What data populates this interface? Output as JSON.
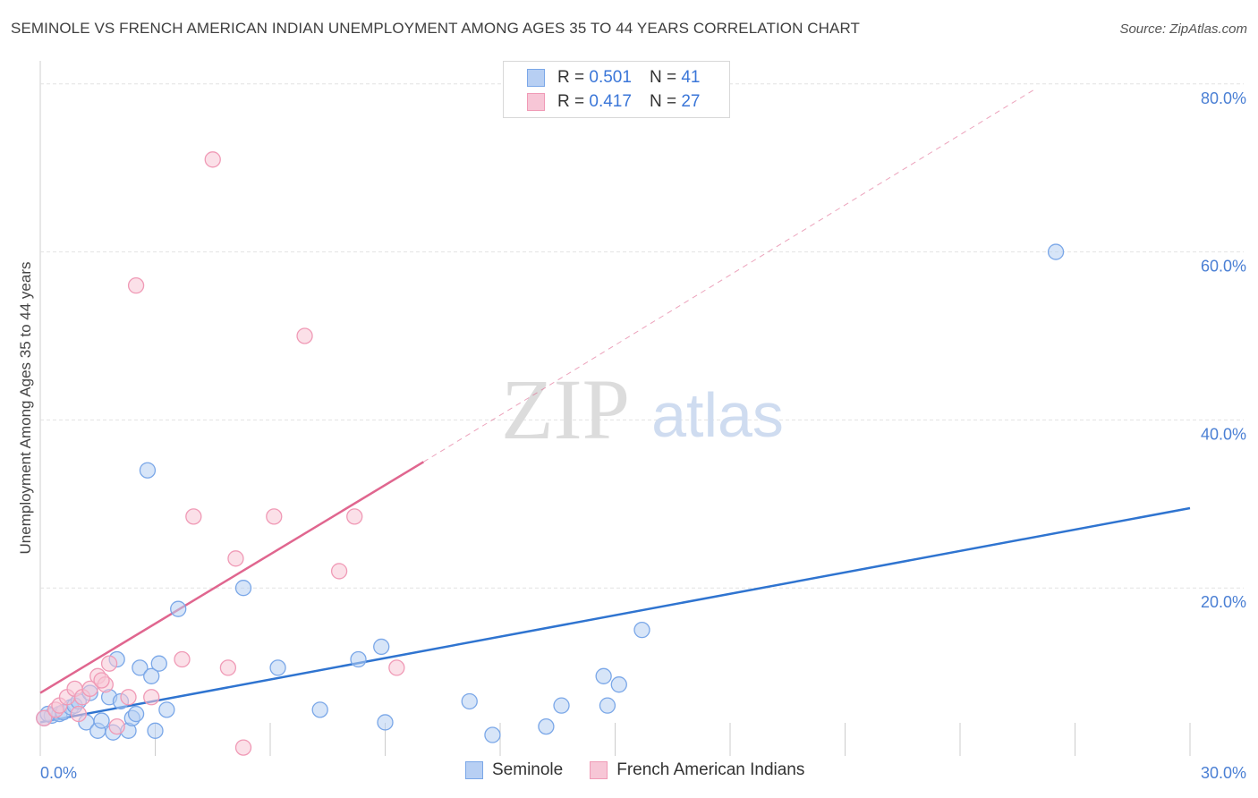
{
  "title": "SEMINOLE VS FRENCH AMERICAN INDIAN UNEMPLOYMENT AMONG AGES 35 TO 44 YEARS CORRELATION CHART",
  "source": "Source: ZipAtlas.com",
  "watermark": {
    "zip": "ZIP",
    "atlas": "atlas"
  },
  "legend": {
    "rows": [
      {
        "r_label": "R =",
        "r_value": "0.501",
        "n_label": "N =",
        "n_value": "41"
      },
      {
        "r_label": "R =",
        "r_value": "0.417",
        "n_label": "N =",
        "n_value": "27"
      }
    ]
  },
  "bottom_legend": [
    "Seminole",
    "French American Indians"
  ],
  "chart_data": {
    "type": "scatter",
    "ylabel": "Unemployment Among Ages 35 to 44 years",
    "xlabel": "",
    "x_tick_labels": [
      "0.0%",
      "30.0%"
    ],
    "y_tick_labels": [
      "80.0%",
      "60.0%",
      "40.0%",
      "20.0%"
    ],
    "xlim": [
      0,
      30
    ],
    "ylim": [
      0,
      82
    ],
    "y_ticks": [
      20,
      40,
      60,
      80
    ],
    "grid": true,
    "series": [
      {
        "name": "Seminole",
        "color": "#7aa7e8",
        "fill": "#b7cff3",
        "trend_color": "#2f74d0",
        "trend": {
          "x0": 0,
          "y0": 4.0,
          "x1": 30,
          "y1": 29.5
        },
        "points": [
          [
            0.1,
            4.5
          ],
          [
            0.3,
            4.8
          ],
          [
            0.5,
            5.0
          ],
          [
            0.6,
            5.2
          ],
          [
            0.8,
            5.8
          ],
          [
            0.9,
            6.0
          ],
          [
            1.0,
            6.5
          ],
          [
            1.2,
            4.0
          ],
          [
            1.3,
            7.5
          ],
          [
            1.5,
            3.0
          ],
          [
            1.6,
            4.2
          ],
          [
            1.8,
            7.0
          ],
          [
            1.9,
            2.8
          ],
          [
            2.0,
            11.5
          ],
          [
            2.1,
            6.5
          ],
          [
            2.3,
            3.0
          ],
          [
            2.4,
            4.5
          ],
          [
            2.5,
            5.0
          ],
          [
            2.6,
            10.5
          ],
          [
            2.8,
            34.0
          ],
          [
            2.9,
            9.5
          ],
          [
            3.0,
            3.0
          ],
          [
            3.1,
            11.0
          ],
          [
            3.3,
            5.5
          ],
          [
            3.6,
            17.5
          ],
          [
            5.3,
            20.0
          ],
          [
            6.2,
            10.5
          ],
          [
            7.3,
            5.5
          ],
          [
            8.3,
            11.5
          ],
          [
            8.9,
            13.0
          ],
          [
            9.0,
            4.0
          ],
          [
            11.2,
            6.5
          ],
          [
            11.8,
            2.5
          ],
          [
            13.2,
            3.5
          ],
          [
            13.6,
            6.0
          ],
          [
            14.7,
            9.5
          ],
          [
            14.8,
            6.0
          ],
          [
            15.1,
            8.5
          ],
          [
            15.7,
            15.0
          ],
          [
            26.5,
            60.0
          ],
          [
            0.2,
            5.0
          ]
        ]
      },
      {
        "name": "French American Indians",
        "color": "#f09ab6",
        "fill": "#f7c6d6",
        "trend_color": "#e0668f",
        "trend": {
          "x0": 0,
          "y0": 7.5,
          "x1": 10.0,
          "y1": 35.0
        },
        "trend_ext": {
          "x1": 26.0,
          "y1": 79.5
        },
        "points": [
          [
            0.1,
            4.5
          ],
          [
            0.4,
            5.5
          ],
          [
            0.5,
            6.0
          ],
          [
            0.7,
            7.0
          ],
          [
            0.9,
            8.0
          ],
          [
            1.0,
            5.0
          ],
          [
            1.1,
            7.0
          ],
          [
            1.3,
            8.0
          ],
          [
            1.5,
            9.5
          ],
          [
            1.7,
            8.5
          ],
          [
            1.8,
            11.0
          ],
          [
            2.0,
            3.5
          ],
          [
            2.3,
            7.0
          ],
          [
            2.5,
            56.0
          ],
          [
            2.9,
            7.0
          ],
          [
            3.7,
            11.5
          ],
          [
            4.0,
            28.5
          ],
          [
            4.5,
            71.0
          ],
          [
            4.9,
            10.5
          ],
          [
            5.1,
            23.5
          ],
          [
            5.3,
            1.0
          ],
          [
            6.1,
            28.5
          ],
          [
            6.9,
            50.0
          ],
          [
            7.8,
            22.0
          ],
          [
            8.2,
            28.5
          ],
          [
            9.3,
            10.5
          ],
          [
            1.6,
            9.0
          ]
        ]
      }
    ]
  }
}
